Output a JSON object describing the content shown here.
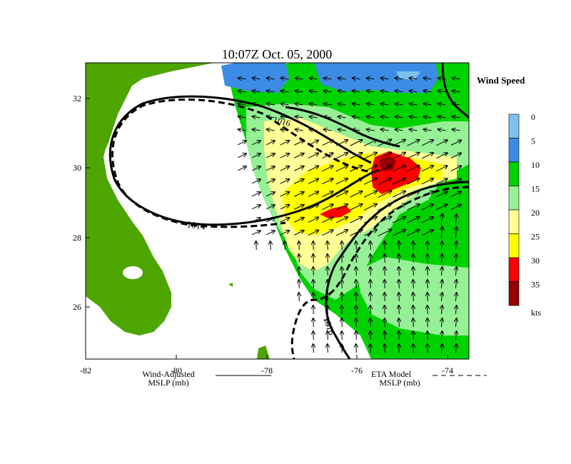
{
  "title": "10:07Z  Oct. 05, 2000",
  "legend": {
    "title": "Wind Speed",
    "units": "kts",
    "levels": [
      {
        "label": "0",
        "color": "#7ec0f0"
      },
      {
        "label": "5",
        "color": "#3c8ce6"
      },
      {
        "label": "10",
        "color": "#00d200"
      },
      {
        "label": "15",
        "color": "#96f096"
      },
      {
        "label": "20",
        "color": "#ffff96"
      },
      {
        "label": "25",
        "color": "#ffff00"
      },
      {
        "label": "30",
        "color": "#ff0000"
      },
      {
        "label": "35",
        "color": "#960000"
      }
    ]
  },
  "axes": {
    "x_ticks": [
      "-82",
      "-80",
      "-78",
      "-76",
      "-74"
    ],
    "y_ticks": [
      "32",
      "30",
      "28",
      "26"
    ]
  },
  "isobars": {
    "left_label": "1014",
    "top_label": "1016",
    "bottom_label": "1016"
  },
  "footer": {
    "left_line1": "Wind-Adjusted",
    "left_line2": "MSLP (mb)",
    "right_line1": "ETA Model",
    "right_line2": "MSLP (mb)"
  },
  "colors": {
    "land": "#4ea500",
    "sea": "#ffffff"
  }
}
